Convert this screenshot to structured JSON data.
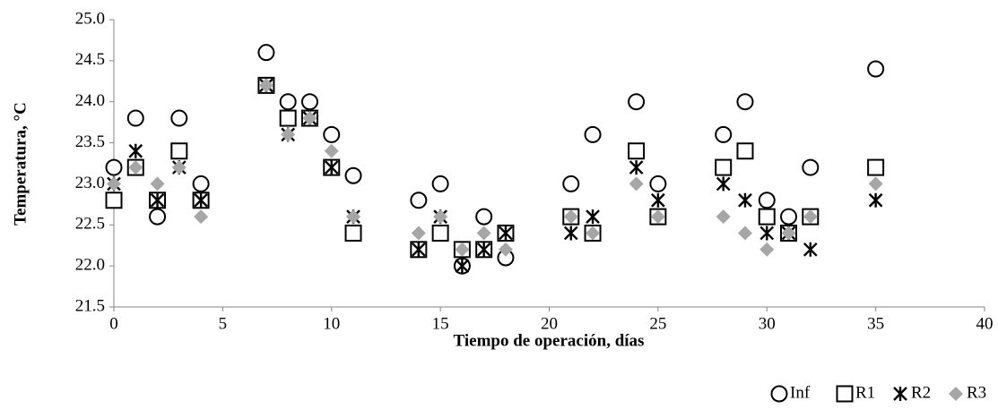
{
  "chart_data": {
    "type": "scatter",
    "x_label": "Tiempo de operación, días",
    "y_label": "Temperatura, °C",
    "x": [
      0,
      1,
      2,
      3,
      4,
      7,
      8,
      9,
      10,
      11,
      14,
      15,
      16,
      17,
      18,
      21,
      22,
      24,
      25,
      28,
      29,
      30,
      31,
      32,
      35
    ],
    "series": [
      {
        "name": "Inf",
        "color": "#000000",
        "marker": "circle",
        "values": [
          23.2,
          23.8,
          22.6,
          23.8,
          23.0,
          24.6,
          24.0,
          24.0,
          23.6,
          23.1,
          22.8,
          23.0,
          22.0,
          22.6,
          22.1,
          23.0,
          23.6,
          24.0,
          23.0,
          23.6,
          24.0,
          22.8,
          22.6,
          23.2,
          24.4
        ]
      },
      {
        "name": "R1",
        "color": "#000000",
        "marker": "square",
        "values": [
          22.8,
          23.2,
          22.8,
          23.4,
          22.8,
          24.2,
          23.8,
          23.8,
          23.2,
          22.4,
          22.2,
          22.4,
          22.2,
          22.2,
          22.4,
          22.6,
          22.4,
          23.4,
          22.6,
          23.2,
          23.4,
          22.6,
          22.4,
          22.6,
          23.2
        ]
      },
      {
        "name": "R2",
        "color": "#000000",
        "marker": "star",
        "values": [
          23.0,
          23.4,
          22.8,
          23.2,
          22.8,
          24.2,
          23.6,
          23.8,
          23.2,
          22.6,
          22.2,
          22.6,
          22.0,
          22.2,
          22.4,
          22.4,
          22.6,
          23.2,
          22.8,
          23.0,
          22.8,
          22.4,
          22.4,
          22.2,
          22.8
        ]
      },
      {
        "name": "R3",
        "color": "#a6a6a6",
        "marker": "diamond",
        "values": [
          23.0,
          23.2,
          23.0,
          23.2,
          22.6,
          24.2,
          23.6,
          23.8,
          23.4,
          22.6,
          22.4,
          22.6,
          22.2,
          22.4,
          22.2,
          22.6,
          22.4,
          23.0,
          22.6,
          22.6,
          22.4,
          22.2,
          22.4,
          22.6,
          23.0
        ]
      }
    ],
    "xlim": [
      0,
      40
    ],
    "xticks": [
      0,
      5,
      10,
      15,
      20,
      25,
      30,
      35,
      40
    ],
    "ylim": [
      21.5,
      25.0
    ],
    "yticks": [
      21.5,
      {
        "value": 22,
        "label": "22.0"
      },
      22.5,
      {
        "value": 23,
        "label": "23.0"
      },
      23.5,
      {
        "value": 24,
        "label": "24.0"
      },
      24.5,
      {
        "value": 25,
        "label": "25.0"
      }
    ],
    "grid": false,
    "legend": "bottom-right"
  }
}
